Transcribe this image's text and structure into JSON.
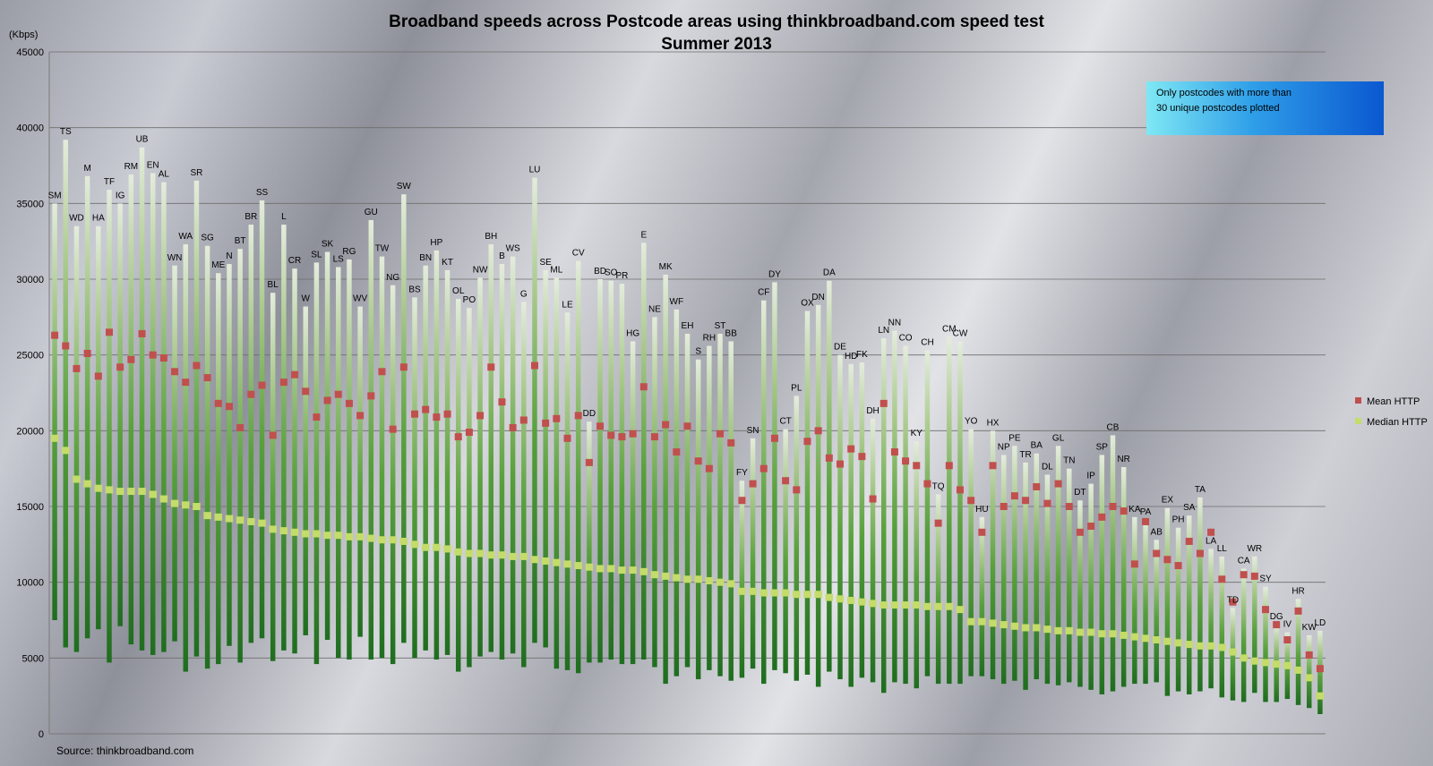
{
  "chart_data": {
    "type": "bar",
    "title": "Broadband speeds across Postcode areas using thinkbroadband.com speed test",
    "subtitle": "Summer 2013",
    "ylabel": "(Kbps)",
    "ylim": [
      0,
      45000
    ],
    "yticks": [
      "0",
      "5000",
      "10000",
      "15000",
      "20000",
      "25000",
      "30000",
      "35000",
      "40000",
      "45000"
    ],
    "grid": true,
    "legend_position": "right",
    "note": [
      "Only postcodes with more than",
      "30 unique postcodes plotted"
    ],
    "source": "Source: thinkbroadband.com",
    "colors": {
      "mean": "#c0504d",
      "median": "#c4dc6a",
      "bar_low": "#1f6d1f",
      "bar_high": "#dbe6cf",
      "note_box": "#1a72e8"
    },
    "series": [
      {
        "name": "Mean HTTP",
        "kind": "marker"
      },
      {
        "name": "Median HTTP",
        "kind": "marker"
      }
    ],
    "categories": [
      {
        "label": "SM",
        "low": 7500,
        "high": 35000,
        "mean": 26300,
        "median": 19500
      },
      {
        "label": "TS",
        "low": 5700,
        "high": 39200,
        "mean": 25600,
        "median": 18700
      },
      {
        "label": "WD",
        "low": 5400,
        "high": 33500,
        "mean": 24100,
        "median": 16800
      },
      {
        "label": "M",
        "low": 6300,
        "high": 36800,
        "mean": 25100,
        "median": 16500
      },
      {
        "label": "HA",
        "low": 6900,
        "high": 33500,
        "mean": 23600,
        "median": 16200
      },
      {
        "label": "TF",
        "low": 4700,
        "high": 35900,
        "mean": 26500,
        "median": 16100
      },
      {
        "label": "IG",
        "low": 7100,
        "high": 35000,
        "mean": 24200,
        "median": 16000
      },
      {
        "label": "RM",
        "low": 5900,
        "high": 36900,
        "mean": 24700,
        "median": 16000
      },
      {
        "label": "UB",
        "low": 5500,
        "high": 38700,
        "mean": 26400,
        "median": 16000
      },
      {
        "label": "EN",
        "low": 5200,
        "high": 37000,
        "mean": 25000,
        "median": 15800
      },
      {
        "label": "AL",
        "low": 5400,
        "high": 36400,
        "mean": 24800,
        "median": 15500
      },
      {
        "label": "WN",
        "low": 6100,
        "high": 30900,
        "mean": 23900,
        "median": 15200
      },
      {
        "label": "WA",
        "low": 4100,
        "high": 32300,
        "mean": 23200,
        "median": 15100
      },
      {
        "label": "SR",
        "low": 5100,
        "high": 36500,
        "mean": 24300,
        "median": 15000
      },
      {
        "label": "SG",
        "low": 4300,
        "high": 32200,
        "mean": 23500,
        "median": 14400
      },
      {
        "label": "ME",
        "low": 4600,
        "high": 30400,
        "mean": 21800,
        "median": 14300
      },
      {
        "label": "N",
        "low": 5800,
        "high": 31000,
        "mean": 21600,
        "median": 14200
      },
      {
        "label": "BT",
        "low": 4700,
        "high": 32000,
        "mean": 20200,
        "median": 14100
      },
      {
        "label": "BR",
        "low": 6000,
        "high": 33600,
        "mean": 22400,
        "median": 14000
      },
      {
        "label": "SS",
        "low": 6300,
        "high": 35200,
        "mean": 23000,
        "median": 13900
      },
      {
        "label": "BL",
        "low": 4800,
        "high": 29100,
        "mean": 19700,
        "median": 13500
      },
      {
        "label": "L",
        "low": 5500,
        "high": 33600,
        "mean": 23200,
        "median": 13400
      },
      {
        "label": "CR",
        "low": 5300,
        "high": 30700,
        "mean": 23700,
        "median": 13300
      },
      {
        "label": "W",
        "low": 6500,
        "high": 28200,
        "mean": 22600,
        "median": 13200
      },
      {
        "label": "SL",
        "low": 4600,
        "high": 31100,
        "mean": 20900,
        "median": 13200
      },
      {
        "label": "SK",
        "low": 6200,
        "high": 31800,
        "mean": 22000,
        "median": 13100
      },
      {
        "label": "LS",
        "low": 5000,
        "high": 30800,
        "mean": 22400,
        "median": 13100
      },
      {
        "label": "RG",
        "low": 4900,
        "high": 31300,
        "mean": 21800,
        "median": 13000
      },
      {
        "label": "WV",
        "low": 6400,
        "high": 28200,
        "mean": 21000,
        "median": 13000
      },
      {
        "label": "GU",
        "low": 4900,
        "high": 33900,
        "mean": 22300,
        "median": 12900
      },
      {
        "label": "TW",
        "low": 5000,
        "high": 31500,
        "mean": 23900,
        "median": 12800
      },
      {
        "label": "NG",
        "low": 4600,
        "high": 29600,
        "mean": 20100,
        "median": 12800
      },
      {
        "label": "SW",
        "low": 6000,
        "high": 35600,
        "mean": 24200,
        "median": 12700
      },
      {
        "label": "BS",
        "low": 5000,
        "high": 28800,
        "mean": 21100,
        "median": 12500
      },
      {
        "label": "BN",
        "low": 5500,
        "high": 30900,
        "mean": 21400,
        "median": 12300
      },
      {
        "label": "HP",
        "low": 4900,
        "high": 31900,
        "mean": 20900,
        "median": 12300
      },
      {
        "label": "KT",
        "low": 5200,
        "high": 30600,
        "mean": 21100,
        "median": 12200
      },
      {
        "label": "OL",
        "low": 4100,
        "high": 28700,
        "mean": 19600,
        "median": 12000
      },
      {
        "label": "PO",
        "low": 4400,
        "high": 28100,
        "mean": 19900,
        "median": 11900
      },
      {
        "label": "NW",
        "low": 5100,
        "high": 30100,
        "mean": 21000,
        "median": 11900
      },
      {
        "label": "BH",
        "low": 5400,
        "high": 32300,
        "mean": 24200,
        "median": 11800
      },
      {
        "label": "B",
        "low": 4900,
        "high": 31000,
        "mean": 21900,
        "median": 11800
      },
      {
        "label": "WS",
        "low": 5300,
        "high": 31500,
        "mean": 20200,
        "median": 11700
      },
      {
        "label": "G",
        "low": 4400,
        "high": 28500,
        "mean": 20700,
        "median": 11700
      },
      {
        "label": "LU",
        "low": 6000,
        "high": 36700,
        "mean": 24300,
        "median": 11500
      },
      {
        "label": "SE",
        "low": 5700,
        "high": 30600,
        "mean": 20500,
        "median": 11400
      },
      {
        "label": "ML",
        "low": 4300,
        "high": 30100,
        "mean": 20800,
        "median": 11300
      },
      {
        "label": "LE",
        "low": 4200,
        "high": 27800,
        "mean": 19500,
        "median": 11200
      },
      {
        "label": "CV",
        "low": 4000,
        "high": 31200,
        "mean": 21000,
        "median": 11100
      },
      {
        "label": "DD",
        "low": 4700,
        "high": 20600,
        "mean": 17900,
        "median": 11000
      },
      {
        "label": "BD",
        "low": 4700,
        "high": 30000,
        "mean": 20300,
        "median": 10900
      },
      {
        "label": "SO",
        "low": 4900,
        "high": 29900,
        "mean": 19700,
        "median": 10900
      },
      {
        "label": "PR",
        "low": 4600,
        "high": 29700,
        "mean": 19600,
        "median": 10800
      },
      {
        "label": "HG",
        "low": 4600,
        "high": 25900,
        "mean": 19800,
        "median": 10800
      },
      {
        "label": "E",
        "low": 4900,
        "high": 32400,
        "mean": 22900,
        "median": 10700
      },
      {
        "label": "NE",
        "low": 4400,
        "high": 27500,
        "mean": 19600,
        "median": 10500
      },
      {
        "label": "MK",
        "low": 3300,
        "high": 30300,
        "mean": 20400,
        "median": 10400
      },
      {
        "label": "WF",
        "low": 3800,
        "high": 28000,
        "mean": 18600,
        "median": 10300
      },
      {
        "label": "EH",
        "low": 4400,
        "high": 26400,
        "mean": 20300,
        "median": 10200
      },
      {
        "label": "S",
        "low": 3600,
        "high": 24700,
        "mean": 18000,
        "median": 10200
      },
      {
        "label": "RH",
        "low": 4200,
        "high": 25600,
        "mean": 17500,
        "median": 10100
      },
      {
        "label": "ST",
        "low": 3800,
        "high": 26400,
        "mean": 19800,
        "median": 10000
      },
      {
        "label": "BB",
        "low": 3500,
        "high": 25900,
        "mean": 19200,
        "median": 9900
      },
      {
        "label": "FY",
        "low": 3700,
        "high": 16700,
        "mean": 15400,
        "median": 9400
      },
      {
        "label": "SN",
        "low": 4300,
        "high": 19500,
        "mean": 16500,
        "median": 9400
      },
      {
        "label": "CF",
        "low": 3300,
        "high": 28600,
        "mean": 17500,
        "median": 9300
      },
      {
        "label": "DY",
        "low": 4200,
        "high": 29800,
        "mean": 19500,
        "median": 9300
      },
      {
        "label": "CT",
        "low": 4000,
        "high": 20100,
        "mean": 16700,
        "median": 9300
      },
      {
        "label": "PL",
        "low": 3500,
        "high": 22300,
        "mean": 16100,
        "median": 9200
      },
      {
        "label": "OX",
        "low": 3900,
        "high": 27900,
        "mean": 19300,
        "median": 9200
      },
      {
        "label": "DN",
        "low": 3100,
        "high": 28300,
        "mean": 20000,
        "median": 9200
      },
      {
        "label": "DA",
        "low": 4100,
        "high": 29900,
        "mean": 18200,
        "median": 9000
      },
      {
        "label": "DE",
        "low": 3600,
        "high": 25000,
        "mean": 17800,
        "median": 8900
      },
      {
        "label": "HD",
        "low": 3100,
        "high": 24400,
        "mean": 18800,
        "median": 8800
      },
      {
        "label": "FK",
        "low": 3700,
        "high": 24500,
        "mean": 18300,
        "median": 8700
      },
      {
        "label": "DH",
        "low": 3400,
        "high": 20800,
        "mean": 15500,
        "median": 8600
      },
      {
        "label": "LN",
        "low": 2700,
        "high": 26100,
        "mean": 21800,
        "median": 8500
      },
      {
        "label": "NN",
        "low": 3400,
        "high": 26600,
        "mean": 18600,
        "median": 8500
      },
      {
        "label": "CO",
        "low": 3300,
        "high": 25600,
        "mean": 18000,
        "median": 8500
      },
      {
        "label": "KY",
        "low": 3000,
        "high": 19300,
        "mean": 17700,
        "median": 8500
      },
      {
        "label": "CH",
        "low": 3800,
        "high": 25300,
        "mean": 16500,
        "median": 8400
      },
      {
        "label": "TQ",
        "low": 3300,
        "high": 15800,
        "mean": 13900,
        "median": 8400
      },
      {
        "label": "CM",
        "low": 3300,
        "high": 26200,
        "mean": 17700,
        "median": 8400
      },
      {
        "label": "CW",
        "low": 3300,
        "high": 25900,
        "mean": 16100,
        "median": 8200
      },
      {
        "label": "YO",
        "low": 3800,
        "high": 20100,
        "mean": 15400,
        "median": 7400
      },
      {
        "label": "HU",
        "low": 3800,
        "high": 14300,
        "mean": 13300,
        "median": 7400
      },
      {
        "label": "HX",
        "low": 3600,
        "high": 20000,
        "mean": 17700,
        "median": 7300
      },
      {
        "label": "NP",
        "low": 3300,
        "high": 18400,
        "mean": 15000,
        "median": 7200
      },
      {
        "label": "PE",
        "low": 3500,
        "high": 19000,
        "mean": 15700,
        "median": 7100
      },
      {
        "label": "TR",
        "low": 2900,
        "high": 17900,
        "mean": 15400,
        "median": 7000
      },
      {
        "label": "BA",
        "low": 3600,
        "high": 18500,
        "mean": 16300,
        "median": 7000
      },
      {
        "label": "DL",
        "low": 3300,
        "high": 17100,
        "mean": 15200,
        "median": 6900
      },
      {
        "label": "GL",
        "low": 3200,
        "high": 19000,
        "mean": 16500,
        "median": 6800
      },
      {
        "label": "TN",
        "low": 3400,
        "high": 17500,
        "mean": 15000,
        "median": 6800
      },
      {
        "label": "DT",
        "low": 3100,
        "high": 15400,
        "mean": 13300,
        "median": 6700
      },
      {
        "label": "IP",
        "low": 2900,
        "high": 16500,
        "mean": 13700,
        "median": 6700
      },
      {
        "label": "SP",
        "low": 2600,
        "high": 18400,
        "mean": 14300,
        "median": 6600
      },
      {
        "label": "CB",
        "low": 2800,
        "high": 19700,
        "mean": 15000,
        "median": 6600
      },
      {
        "label": "NR",
        "low": 3100,
        "high": 17600,
        "mean": 14700,
        "median": 6500
      },
      {
        "label": "KA",
        "low": 3300,
        "high": 14300,
        "mean": 11200,
        "median": 6400
      },
      {
        "label": "PA",
        "low": 3300,
        "high": 14100,
        "mean": 14000,
        "median": 6300
      },
      {
        "label": "AB",
        "low": 3400,
        "high": 12800,
        "mean": 11900,
        "median": 6200
      },
      {
        "label": "EX",
        "low": 2500,
        "high": 14900,
        "mean": 11500,
        "median": 6100
      },
      {
        "label": "PH",
        "low": 2800,
        "high": 13600,
        "mean": 11100,
        "median": 6000
      },
      {
        "label": "SA",
        "low": 2600,
        "high": 14400,
        "mean": 12700,
        "median": 5900
      },
      {
        "label": "TA",
        "low": 2800,
        "high": 15600,
        "mean": 11900,
        "median": 5800
      },
      {
        "label": "LA",
        "low": 3000,
        "high": 12200,
        "mean": 13300,
        "median": 5800
      },
      {
        "label": "LL",
        "low": 2400,
        "high": 11700,
        "mean": 10200,
        "median": 5700
      },
      {
        "label": "TD",
        "low": 2200,
        "high": 8300,
        "mean": 8700,
        "median": 5400
      },
      {
        "label": "CA",
        "low": 2100,
        "high": 10900,
        "mean": 10500,
        "median": 5000
      },
      {
        "label": "WR",
        "low": 2700,
        "high": 11700,
        "mean": 10400,
        "median": 4800
      },
      {
        "label": "SY",
        "low": 2100,
        "high": 9700,
        "mean": 8200,
        "median": 4700
      },
      {
        "label": "DG",
        "low": 2100,
        "high": 7200,
        "mean": 7200,
        "median": 4600
      },
      {
        "label": "IV",
        "low": 2300,
        "high": 6700,
        "mean": 6200,
        "median": 4500
      },
      {
        "label": "HR",
        "low": 1900,
        "high": 8900,
        "mean": 8100,
        "median": 4200
      },
      {
        "label": "KW",
        "low": 1700,
        "high": 6500,
        "mean": 5200,
        "median": 3700
      },
      {
        "label": "LD",
        "low": 1300,
        "high": 6800,
        "mean": 4300,
        "median": 2500
      }
    ]
  }
}
